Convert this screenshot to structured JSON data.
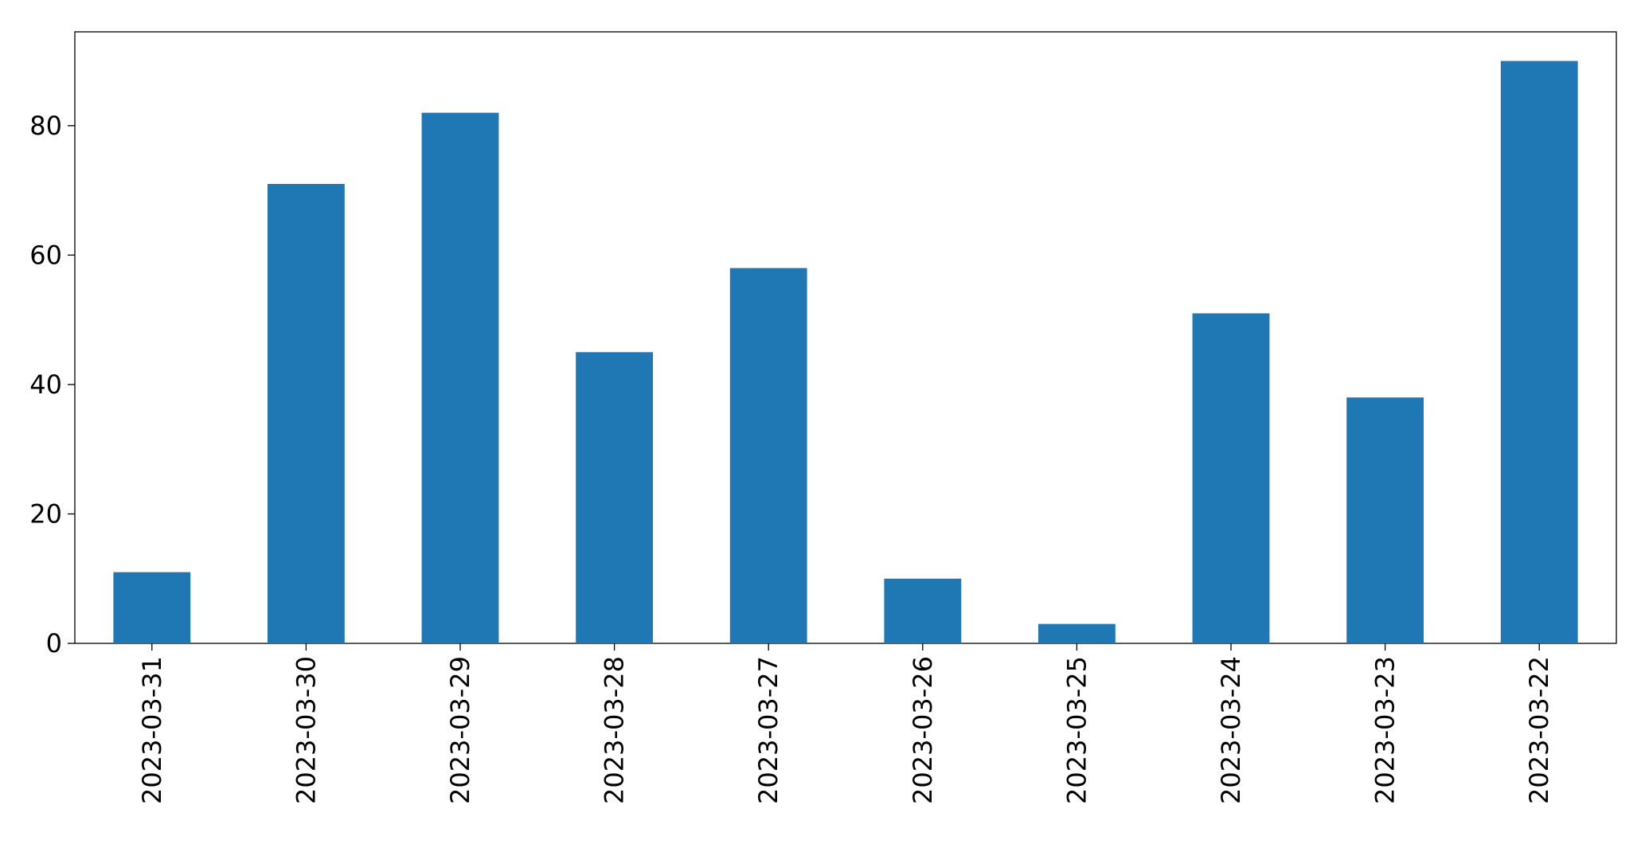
{
  "chart_data": {
    "type": "bar",
    "categories": [
      "2023-03-31",
      "2023-03-30",
      "2023-03-29",
      "2023-03-28",
      "2023-03-27",
      "2023-03-26",
      "2023-03-25",
      "2023-03-24",
      "2023-03-23",
      "2023-03-22"
    ],
    "values": [
      11,
      71,
      82,
      45,
      58,
      10,
      3,
      51,
      38,
      90
    ],
    "color": "#1f77b4",
    "ylim": [
      0,
      94.5
    ],
    "yticks": [
      0,
      20,
      40,
      60,
      80
    ],
    "grid": false
  }
}
